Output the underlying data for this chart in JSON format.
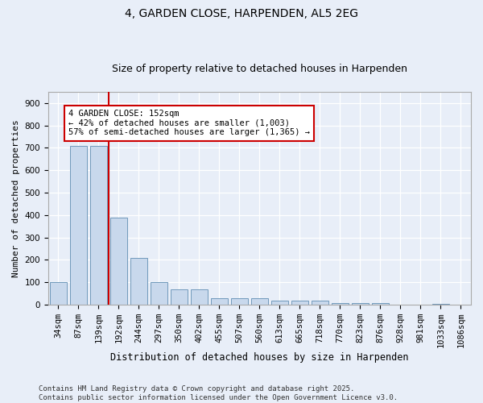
{
  "title1": "4, GARDEN CLOSE, HARPENDEN, AL5 2EG",
  "title2": "Size of property relative to detached houses in Harpenden",
  "xlabel": "Distribution of detached houses by size in Harpenden",
  "ylabel": "Number of detached properties",
  "categories": [
    "34sqm",
    "87sqm",
    "139sqm",
    "192sqm",
    "244sqm",
    "297sqm",
    "350sqm",
    "402sqm",
    "455sqm",
    "507sqm",
    "560sqm",
    "613sqm",
    "665sqm",
    "718sqm",
    "770sqm",
    "823sqm",
    "876sqm",
    "928sqm",
    "981sqm",
    "1033sqm",
    "1086sqm"
  ],
  "values": [
    100,
    710,
    710,
    390,
    207,
    100,
    70,
    70,
    30,
    30,
    30,
    17,
    17,
    17,
    8,
    8,
    8,
    0,
    0,
    5,
    0
  ],
  "bar_color": "#c8d8ec",
  "bar_edge_color": "#7099bb",
  "vline_x_index": 2,
  "vline_color": "#cc0000",
  "annotation_text": "4 GARDEN CLOSE: 152sqm\n← 42% of detached houses are smaller (1,003)\n57% of semi-detached houses are larger (1,365) →",
  "annotation_box_color": "#ffffff",
  "annotation_box_edge": "#cc0000",
  "ylim": [
    0,
    950
  ],
  "yticks": [
    0,
    100,
    200,
    300,
    400,
    500,
    600,
    700,
    800,
    900
  ],
  "background_color": "#e8eef8",
  "footer": "Contains HM Land Registry data © Crown copyright and database right 2025.\nContains public sector information licensed under the Open Government Licence v3.0.",
  "title1_fontsize": 10,
  "title2_fontsize": 9,
  "xlabel_fontsize": 8.5,
  "ylabel_fontsize": 8,
  "tick_fontsize": 7.5,
  "footer_fontsize": 6.5,
  "annot_fontsize": 7.5
}
